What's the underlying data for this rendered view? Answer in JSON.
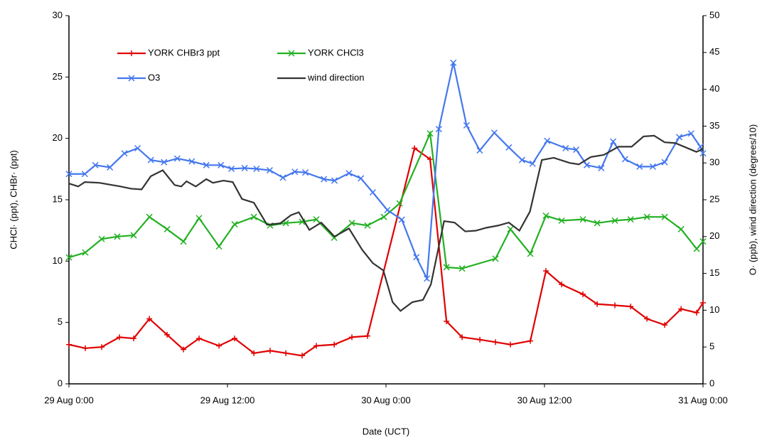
{
  "chart_data": {
    "type": "line",
    "xlabel": "Date (UCT)",
    "ylabel": "CHCl· (ppt), CHBr· (ppt)",
    "y2label": "O· (ppb), wind direction (degrees/10)",
    "xlim": [
      0,
      48
    ],
    "xticks": [
      {
        "value": 0,
        "label": "29 Aug 0:00"
      },
      {
        "value": 12,
        "label": "29 Aug 12:00"
      },
      {
        "value": 24,
        "label": "30 Aug 0:00"
      },
      {
        "value": 36,
        "label": "30 Aug 12:00"
      },
      {
        "value": 48,
        "label": "31 Aug 0:00"
      }
    ],
    "ylim": [
      0,
      30
    ],
    "yticks": [
      0,
      5,
      10,
      15,
      20,
      25,
      30
    ],
    "y2lim": [
      0,
      50
    ],
    "y2ticks": [
      0,
      5,
      10,
      15,
      20,
      25,
      30,
      35,
      40,
      45,
      50
    ],
    "legend": "top-left",
    "series": [
      {
        "name": "YORK CHBr3 ppt",
        "color": "#e00000",
        "marker": "plus",
        "x": [
          0,
          1.24,
          2.48,
          3.82,
          4.9,
          6.09,
          7.43,
          8.67,
          9.85,
          11.36,
          12.54,
          14.0,
          15.23,
          16.42,
          17.65,
          18.73,
          20.08,
          21.42,
          22.6,
          26.16,
          27.34,
          28.58,
          29.76,
          31.11,
          32.29,
          33.42,
          34.93,
          36.11,
          37.3,
          38.91,
          39.99,
          41.33,
          42.52,
          43.76,
          45.1,
          46.34,
          47.52,
          48
        ],
        "values": [
          3.2,
          2.9,
          3.0,
          3.8,
          3.7,
          5.3,
          4.0,
          2.8,
          3.7,
          3.1,
          3.7,
          2.5,
          2.7,
          2.5,
          2.3,
          3.1,
          3.2,
          3.8,
          3.9,
          19.2,
          18.3,
          5.1,
          3.8,
          3.6,
          3.4,
          3.2,
          3.5,
          9.2,
          8.1,
          7.3,
          6.5,
          6.4,
          6.3,
          5.3,
          4.8,
          6.1,
          5.8,
          6.6
        ]
      },
      {
        "name": "YORK CHCl3",
        "color": "#22b022",
        "marker": "cross",
        "x": [
          0,
          1.24,
          2.48,
          3.66,
          4.9,
          6.09,
          7.43,
          8.67,
          9.85,
          11.36,
          12.54,
          14.0,
          15.23,
          16.42,
          17.65,
          18.73,
          20.08,
          21.42,
          22.6,
          23.84,
          25.03,
          27.34,
          28.58,
          29.76,
          32.29,
          33.42,
          34.93,
          36.11,
          37.3,
          38.91,
          39.99,
          41.33,
          42.52,
          43.76,
          45.1,
          46.34,
          47.52,
          48
        ],
        "values": [
          10.3,
          10.7,
          11.8,
          12.0,
          12.1,
          13.6,
          12.6,
          11.6,
          13.5,
          11.2,
          13.0,
          13.6,
          12.9,
          13.1,
          13.2,
          13.4,
          11.9,
          13.1,
          12.9,
          13.6,
          14.7,
          20.4,
          9.5,
          9.4,
          10.2,
          12.6,
          10.6,
          13.7,
          13.3,
          13.4,
          13.1,
          13.3,
          13.4,
          13.6,
          13.6,
          12.6,
          11.0,
          11.6
        ]
      },
      {
        "name": "O3",
        "color": "#4477ee",
        "marker": "cross",
        "axis": "y2",
        "x": [
          0,
          1.2,
          2.0,
          3.1,
          4.2,
          5.2,
          6.2,
          7.2,
          8.2,
          9.3,
          10.4,
          11.5,
          12.3,
          13.3,
          14.2,
          15.2,
          16.2,
          17.1,
          17.9,
          19.3,
          20.1,
          21.2,
          22.1,
          23.0,
          24.1,
          25.2,
          26.3,
          27.1,
          28.0,
          29.1,
          30.1,
          31.1,
          32.2,
          33.3,
          34.3,
          35.1,
          36.2,
          37.6,
          38.4,
          39.2,
          40.3,
          41.2,
          42.1,
          43.2,
          44.2,
          45.1,
          46.2,
          47.1,
          47.8,
          48
        ],
        "values": [
          28.5,
          28.5,
          29.7,
          29.4,
          31.3,
          32.0,
          30.4,
          30.1,
          30.6,
          30.2,
          29.7,
          29.7,
          29.2,
          29.3,
          29.2,
          29.0,
          28.0,
          28.8,
          28.7,
          27.8,
          27.6,
          28.6,
          27.9,
          26.0,
          23.6,
          22.3,
          17.2,
          14.3,
          34.6,
          43.6,
          35.1,
          31.7,
          34.1,
          32.1,
          30.4,
          29.9,
          33.0,
          32.0,
          31.8,
          29.7,
          29.3,
          32.9,
          30.5,
          29.5,
          29.5,
          30.1,
          33.5,
          34.0,
          32.2,
          31.3
        ]
      },
      {
        "name": "wind direction",
        "color": "#333333",
        "marker": "none",
        "axis": "y2",
        "x": [
          0,
          0.7,
          1.2,
          2.3,
          3.9,
          4.7,
          5.5,
          6.2,
          7.1,
          8.0,
          8.5,
          8.9,
          9.6,
          10.4,
          10.9,
          11.7,
          12.4,
          13.1,
          14.0,
          15.0,
          16.0,
          16.8,
          17.4,
          18.2,
          19.1,
          20.1,
          21.2,
          22.2,
          23.0,
          23.8,
          24.5,
          25.1,
          26.0,
          26.8,
          27.4,
          28.4,
          29.2,
          30.0,
          30.8,
          31.6,
          32.5,
          33.3,
          34.1,
          34.9,
          35.8,
          36.7,
          37.9,
          38.6,
          39.5,
          40.5,
          41.6,
          42.6,
          43.5,
          44.3,
          45.1,
          45.9,
          46.7,
          47.5,
          48
        ],
        "values": [
          27.2,
          26.8,
          27.4,
          27.3,
          26.8,
          26.5,
          26.4,
          28.2,
          29.0,
          27.0,
          26.8,
          27.5,
          26.8,
          27.8,
          27.3,
          27.6,
          27.4,
          25.1,
          24.6,
          21.6,
          21.8,
          22.9,
          23.3,
          20.9,
          21.9,
          20.0,
          21.1,
          18.2,
          16.4,
          15.4,
          11.1,
          9.9,
          11.1,
          11.4,
          13.5,
          22.1,
          21.9,
          20.7,
          20.8,
          21.2,
          21.5,
          21.9,
          20.8,
          23.4,
          30.4,
          30.7,
          30.0,
          29.8,
          30.8,
          31.1,
          32.2,
          32.2,
          33.6,
          33.7,
          32.8,
          32.7,
          32.1,
          31.5,
          31.9
        ]
      }
    ]
  }
}
